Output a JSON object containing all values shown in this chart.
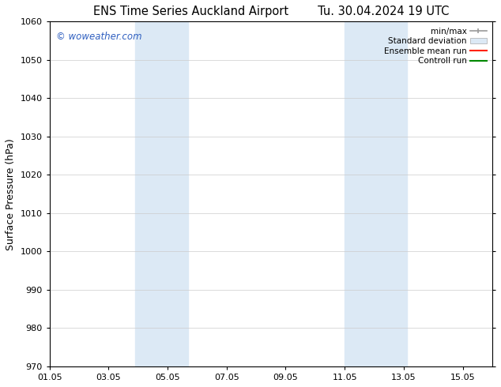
{
  "title_left": "ENS Time Series Auckland Airport",
  "title_right": "Tu. 30.04.2024 19 UTC",
  "ylabel": "Surface Pressure (hPa)",
  "xlabel": "",
  "ylim": [
    970,
    1060
  ],
  "yticks": [
    970,
    980,
    990,
    1000,
    1010,
    1020,
    1030,
    1040,
    1050,
    1060
  ],
  "xlim_start": 1,
  "xlim_end": 16,
  "xtick_labels": [
    "01.05",
    "03.05",
    "05.05",
    "07.05",
    "09.05",
    "11.05",
    "13.05",
    "15.05"
  ],
  "xtick_positions": [
    1,
    3,
    5,
    7,
    9,
    11,
    13,
    15
  ],
  "shaded_bands": [
    {
      "x_start": 3.9,
      "x_end": 5.7
    },
    {
      "x_start": 11.0,
      "x_end": 13.1
    }
  ],
  "shade_color": "#dce9f5",
  "background_color": "#ffffff",
  "plot_bg_color": "#ffffff",
  "watermark_text": "© woweather.com",
  "watermark_color": "#3060c0",
  "grid_color": "#cccccc",
  "tick_color": "#000000",
  "spine_color": "#000000",
  "title_fontsize": 10.5,
  "label_fontsize": 9,
  "tick_fontsize": 8,
  "legend_fontsize": 7.5
}
